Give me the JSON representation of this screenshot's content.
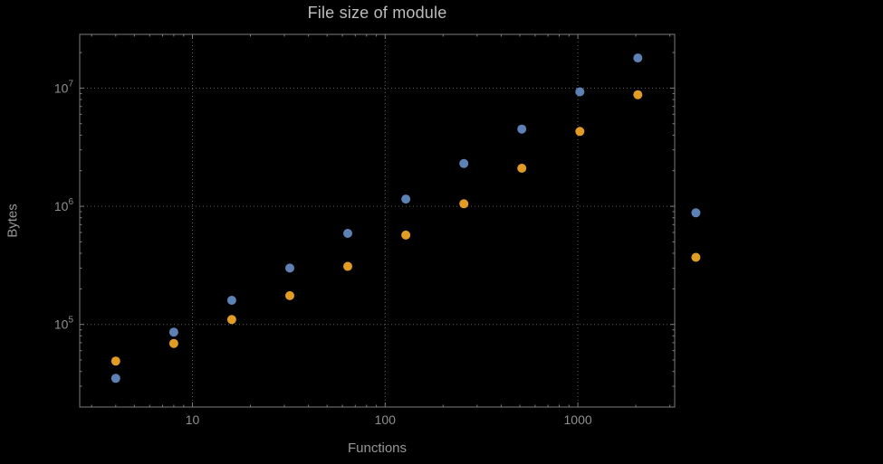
{
  "chart_data": {
    "type": "scatter",
    "title": "File size of module",
    "xlabel": "Functions",
    "ylabel": "Bytes",
    "x_scale": "log",
    "y_scale": "log",
    "xlim": [
      2.6,
      3180
    ],
    "ylim": [
      20000,
      28500000
    ],
    "grid": "dotted",
    "legend": "none",
    "background": "#000000",
    "frame_color": "#7d7d7d",
    "grid_color": "#5c5c5c",
    "x_ticks": [
      {
        "value": 10,
        "label": "10"
      },
      {
        "value": 100,
        "label": "100"
      },
      {
        "value": 1000,
        "label": "1000"
      }
    ],
    "y_ticks": [
      {
        "value": 100000,
        "label_base": "10",
        "label_exp": "5"
      },
      {
        "value": 1000000,
        "label_base": "10",
        "label_exp": "6"
      },
      {
        "value": 10000000,
        "label_base": "10",
        "label_exp": "7"
      }
    ],
    "x": [
      4,
      8,
      16,
      32,
      64,
      128,
      256,
      512,
      1024,
      2048,
      4096
    ],
    "series": [
      {
        "name": "series-1",
        "color": "#5e81b5",
        "x": [
          4,
          8,
          16,
          32,
          64,
          128,
          256,
          512,
          1024,
          2048,
          4096
        ],
        "y": [
          35000,
          86000,
          160000,
          300000,
          590000,
          1150000,
          2300000,
          4500000,
          9300000,
          18000000,
          880000
        ]
      },
      {
        "name": "series-2",
        "color": "#e19c24",
        "x": [
          4,
          8,
          16,
          32,
          64,
          128,
          256,
          512,
          1024,
          2048,
          4096
        ],
        "y": [
          49000,
          69000,
          110000,
          175000,
          310000,
          570000,
          1050000,
          2100000,
          4300000,
          8800000,
          370000
        ]
      }
    ]
  }
}
